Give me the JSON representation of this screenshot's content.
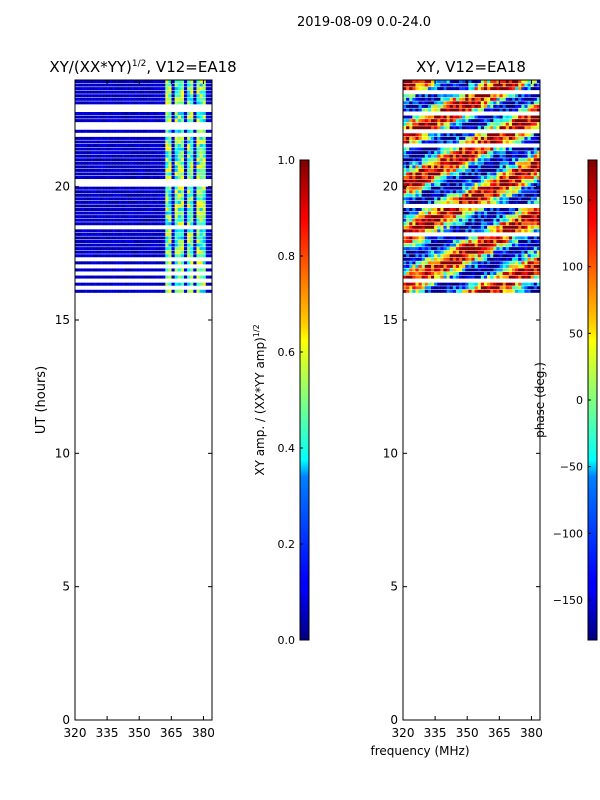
{
  "figure": {
    "suptitle": "2019-08-09 0.0-24.0",
    "xlabel": "frequency (MHz)"
  },
  "chart_data": [
    {
      "type": "heatmap",
      "title_main": "XY/(XX*YY)",
      "title_exp": "1/2",
      "title_tail": ", V12=EA18",
      "xlabel": "",
      "ylabel": "UT (hours)",
      "xlim": [
        320,
        384
      ],
      "ylim": [
        0,
        24
      ],
      "xticks": [
        "320",
        "335",
        "350",
        "365",
        "380"
      ],
      "yticks": [
        "0",
        "5",
        "10",
        "15",
        "20"
      ],
      "data_range_ut": [
        16,
        24
      ],
      "colormap": "jet",
      "colorbar": {
        "label_main": "XY amp. / (XX*YY amp)",
        "label_exp": "1/2",
        "range": [
          0.0,
          1.0
        ],
        "ticks": [
          "0.0",
          "0.2",
          "0.4",
          "0.6",
          "0.8",
          "1.0"
        ]
      }
    },
    {
      "type": "heatmap",
      "title_main": "XY, V12=EA18",
      "xlabel": "frequency (MHz)",
      "ylabel": "",
      "xlim": [
        320,
        384
      ],
      "ylim": [
        0,
        24
      ],
      "xticks": [
        "320",
        "335",
        "350",
        "365",
        "380"
      ],
      "yticks": [
        "0",
        "5",
        "10",
        "15",
        "20"
      ],
      "data_range_ut": [
        16,
        24
      ],
      "colormap": "jet",
      "colorbar": {
        "label_main": "phase (deg.)",
        "range": [
          -180,
          180
        ],
        "ticks": [
          "−150",
          "−100",
          "−50",
          "0",
          "50",
          "100",
          "150"
        ]
      }
    }
  ]
}
